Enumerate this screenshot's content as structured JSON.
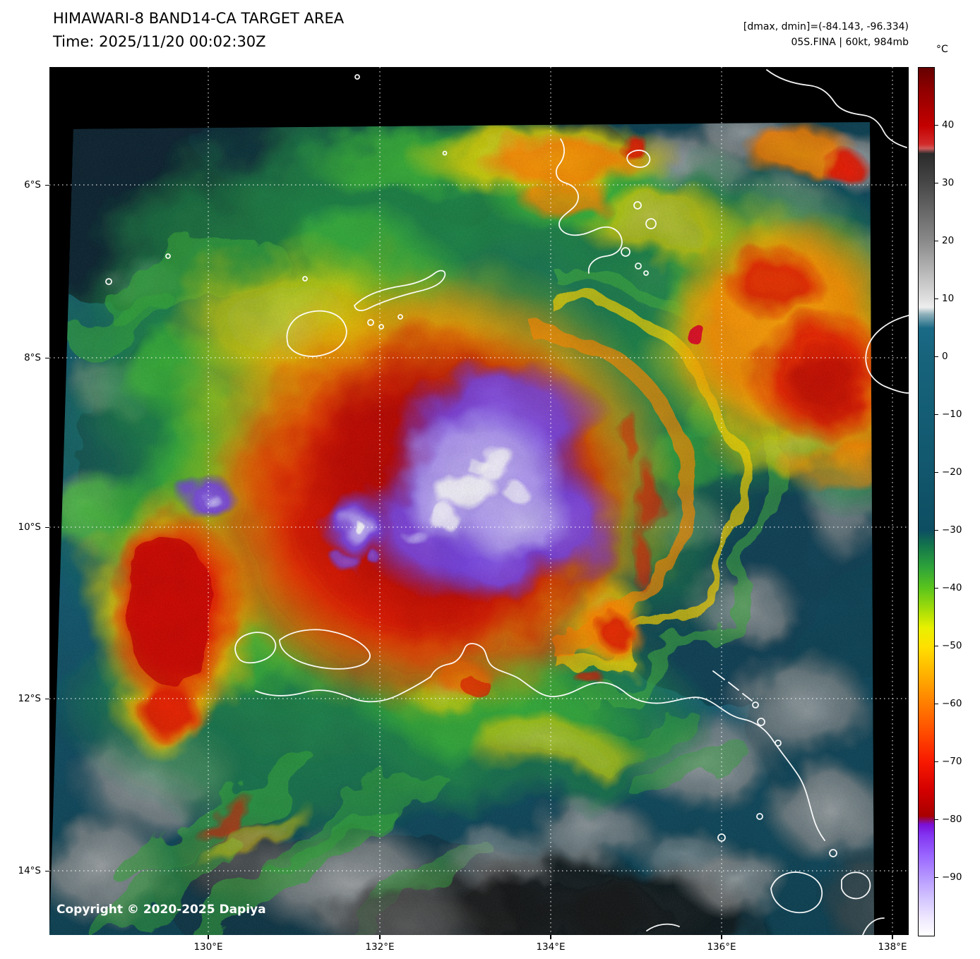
{
  "header": {
    "title": "HIMAWARI-8 BAND14-CA TARGET AREA",
    "time": "Time: 2025/11/20 00:02:30Z",
    "dmax_dmin": "[dmax, dmin]=(-84.143, -96.334)",
    "storm": "05S.FINA | 60kt, 984mb"
  },
  "colorbar": {
    "unit": "°C",
    "ticks": [
      "40",
      "30",
      "20",
      "10",
      "0",
      "−10",
      "−20",
      "−30",
      "−40",
      "−50",
      "−60",
      "−70",
      "−80",
      "−90"
    ]
  },
  "axes": {
    "lat": [
      "6°S",
      "8°S",
      "10°S",
      "12°S",
      "14°S"
    ],
    "lon": [
      "130°E",
      "132°E",
      "134°E",
      "136°E",
      "138°E"
    ]
  },
  "map": {
    "copyright": "Copyright © 2020-2025 Dapiya"
  }
}
